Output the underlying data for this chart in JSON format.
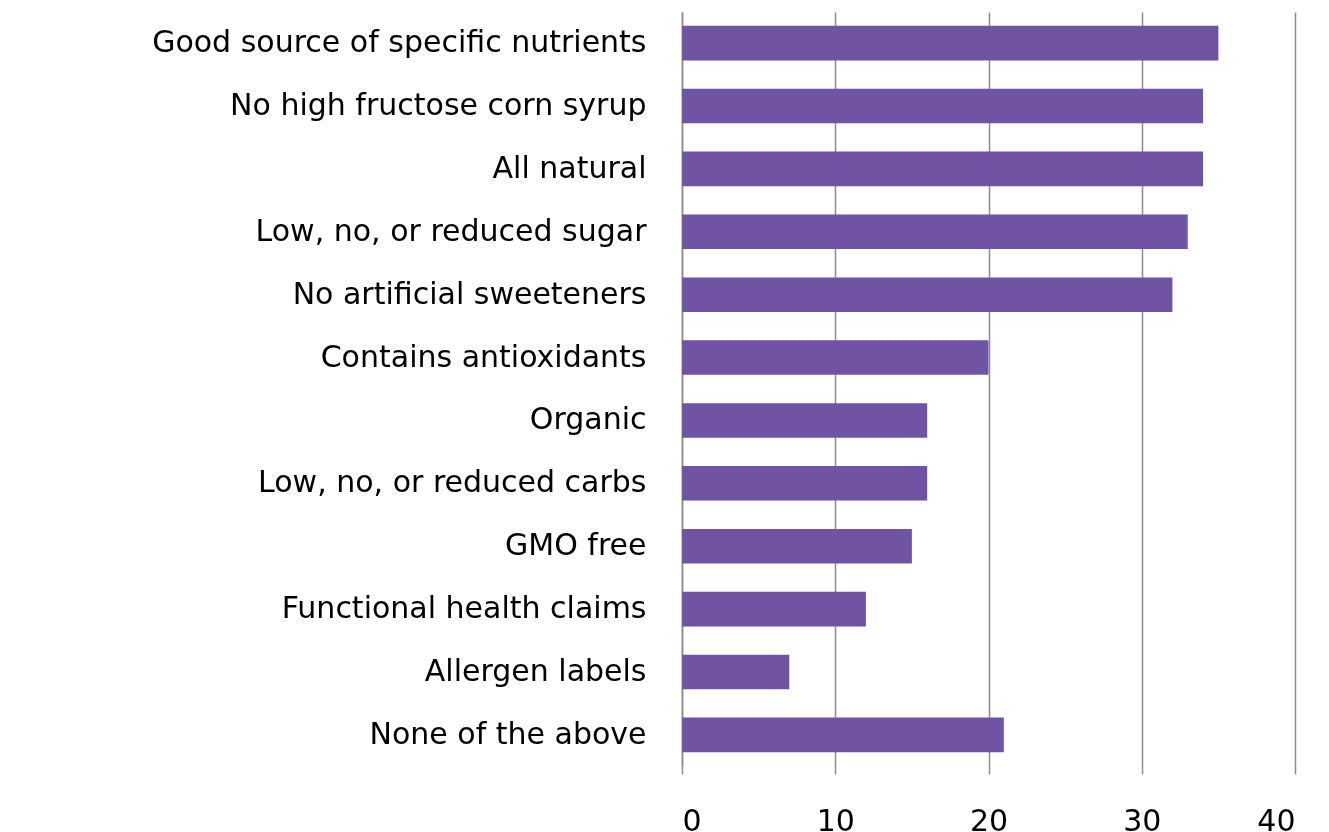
{
  "chart_data": {
    "type": "bar",
    "orientation": "horizontal",
    "categories": [
      "Good source of specific nutrients",
      "No high fructose corn syrup",
      "All natural",
      "Low, no, or reduced sugar",
      "No artificial sweeteners",
      "Contains antioxidants",
      "Organic",
      "Low, no, or reduced carbs",
      "GMO free",
      "Functional health claims",
      "Allergen labels",
      "None of the above"
    ],
    "values": [
      35,
      34,
      34,
      33,
      32,
      20,
      16,
      16,
      15,
      12,
      7,
      21
    ],
    "color": "#7054a3",
    "xlim": [
      0,
      40
    ],
    "xticks": [
      0,
      10,
      20,
      30,
      40
    ],
    "grid": "x"
  }
}
